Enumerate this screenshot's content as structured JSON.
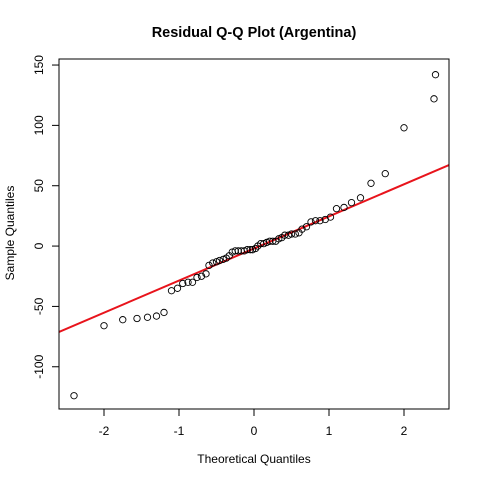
{
  "chart_data": {
    "type": "scatter",
    "title": "Residual Q-Q Plot (Argentina)",
    "xlabel": "Theoretical Quantiles",
    "ylabel": "Sample Quantiles",
    "xlim": [
      -2.6,
      2.6
    ],
    "ylim": [
      -135,
      155
    ],
    "xticks": [
      -2,
      -1,
      0,
      1,
      2
    ],
    "yticks": [
      -100,
      -50,
      0,
      50,
      100,
      150
    ],
    "grid": false,
    "legend": "none",
    "point_style": "open-circle",
    "points": [
      [
        -2.4,
        -124
      ],
      [
        -2.0,
        -66
      ],
      [
        -1.75,
        -61
      ],
      [
        -1.56,
        -60
      ],
      [
        -1.42,
        -59
      ],
      [
        -1.3,
        -58
      ],
      [
        -1.2,
        -55
      ],
      [
        -1.1,
        -37
      ],
      [
        -1.02,
        -35
      ],
      [
        -0.95,
        -31
      ],
      [
        -0.88,
        -30
      ],
      [
        -0.82,
        -30
      ],
      [
        -0.76,
        -26
      ],
      [
        -0.7,
        -25
      ],
      [
        -0.64,
        -23
      ],
      [
        -0.6,
        -16
      ],
      [
        -0.55,
        -14
      ],
      [
        -0.5,
        -13
      ],
      [
        -0.46,
        -12
      ],
      [
        -0.41,
        -11
      ],
      [
        -0.37,
        -10
      ],
      [
        -0.33,
        -8
      ],
      [
        -0.29,
        -5
      ],
      [
        -0.25,
        -4
      ],
      [
        -0.21,
        -4
      ],
      [
        -0.17,
        -4
      ],
      [
        -0.13,
        -4
      ],
      [
        -0.09,
        -3
      ],
      [
        -0.05,
        -3
      ],
      [
        -0.02,
        -3
      ],
      [
        0.02,
        -2
      ],
      [
        0.05,
        0
      ],
      [
        0.09,
        2
      ],
      [
        0.13,
        2
      ],
      [
        0.17,
        3
      ],
      [
        0.21,
        4
      ],
      [
        0.25,
        4
      ],
      [
        0.29,
        4
      ],
      [
        0.33,
        6
      ],
      [
        0.37,
        7
      ],
      [
        0.41,
        9
      ],
      [
        0.46,
        9
      ],
      [
        0.5,
        10
      ],
      [
        0.55,
        10
      ],
      [
        0.6,
        11
      ],
      [
        0.64,
        14
      ],
      [
        0.7,
        16
      ],
      [
        0.76,
        20
      ],
      [
        0.82,
        21
      ],
      [
        0.88,
        21
      ],
      [
        0.95,
        22
      ],
      [
        1.02,
        24
      ],
      [
        1.1,
        31
      ],
      [
        1.2,
        32
      ],
      [
        1.3,
        36
      ],
      [
        1.42,
        40
      ],
      [
        1.56,
        52
      ],
      [
        1.75,
        60
      ],
      [
        2.0,
        98
      ],
      [
        2.4,
        122
      ],
      [
        2.42,
        142
      ]
    ],
    "reference_line": {
      "intercept": -2,
      "slope": 26.6
    },
    "colors": {
      "points": "#000000",
      "reference_line": "#e8141c",
      "background": "#ffffff"
    }
  }
}
